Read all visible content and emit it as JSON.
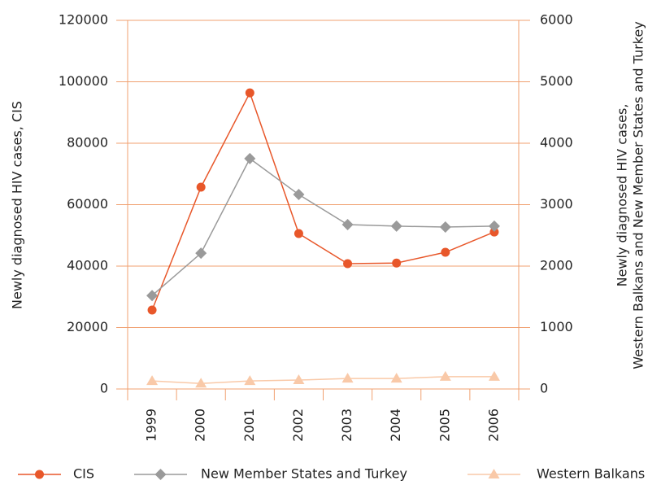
{
  "chart_data": {
    "type": "line",
    "ylabel": "Newly diagnosed HIV cases, CIS",
    "y2label": [
      "Newly diagnosed HIV cases,",
      "Western Balkans and New Member States and Turkey"
    ],
    "categories": [
      "1999",
      "2000",
      "2001",
      "2002",
      "2003",
      "2004",
      "2005",
      "2006"
    ],
    "series": [
      {
        "name": "CIS",
        "color": "#e8572a",
        "marker": "circle",
        "values": [
          25700,
          65700,
          96400,
          50600,
          40800,
          41000,
          44500,
          51100
        ]
      },
      {
        "name": "New Member States and Turkey",
        "color": "#9a9a9a",
        "marker": "diamond",
        "axis": "y2",
        "values": [
          1520,
          2210,
          3750,
          3165,
          2675,
          2650,
          2635,
          2650
        ]
      },
      {
        "name": "Western Balkans",
        "color": "#f9c9a8",
        "marker": "triangle",
        "axis": "y2",
        "values": [
          130,
          90,
          130,
          145,
          170,
          170,
          200,
          200
        ]
      }
    ],
    "ylim": [
      0,
      120000
    ],
    "yticks": [
      0,
      20000,
      40000,
      60000,
      80000,
      100000,
      120000
    ],
    "y2lim": [
      0,
      6000
    ],
    "y2ticks": [
      0,
      1000,
      2000,
      3000,
      4000,
      5000,
      6000
    ],
    "grid": true,
    "axis_color": "#f0a070",
    "legend": "bottom"
  }
}
